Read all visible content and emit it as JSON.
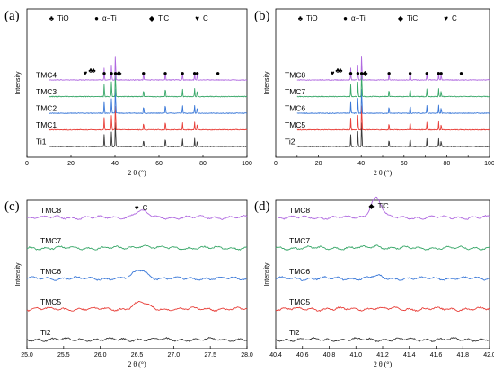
{
  "colors": {
    "black": "#3a3a3a",
    "red": "#e8403a",
    "blue": "#3a78d8",
    "green": "#3aa86a",
    "purple": "#b06ae0"
  },
  "chart_data": [
    {
      "panel": "(a)",
      "type": "line",
      "xlabel": "2 θ (°)",
      "ylabel": "Intensity",
      "xlim": [
        0,
        100
      ],
      "xticks": [
        "0",
        "20",
        "40",
        "60",
        "80",
        "100"
      ],
      "legend": [
        "TiO",
        "α−Ti",
        "TiC",
        "C"
      ],
      "legend_icons": [
        "club-icon",
        "dot-icon",
        "diamond-icon",
        "heart-icon"
      ],
      "peaks": [
        35.1,
        38.4,
        40.2,
        53.0,
        62.9,
        70.7,
        76.2,
        77.4
      ],
      "peak_heights": [
        0.45,
        0.55,
        1.0,
        0.28,
        0.35,
        0.28,
        0.3,
        0.22
      ],
      "series": [
        {
          "name": "Ti1",
          "color": "black"
        },
        {
          "name": "TMC1",
          "color": "red"
        },
        {
          "name": "TMC2",
          "color": "blue"
        },
        {
          "name": "TMC3",
          "color": "green"
        },
        {
          "name": "TMC4",
          "color": "purple"
        }
      ],
      "markers": [
        {
          "x": 26.5,
          "symbol": "heart-icon"
        },
        {
          "x": 29.0,
          "symbol": "club-icon"
        },
        {
          "x": 30.2,
          "symbol": "club-icon"
        },
        {
          "x": 35.1,
          "symbol": "dot-icon"
        },
        {
          "x": 38.4,
          "symbol": "dot-icon"
        },
        {
          "x": 40.2,
          "symbol": "dot-icon"
        },
        {
          "x": 41.8,
          "symbol": "diamond-icon"
        },
        {
          "x": 53.0,
          "symbol": "dot-icon"
        },
        {
          "x": 62.9,
          "symbol": "dot-icon"
        },
        {
          "x": 70.7,
          "symbol": "dot-icon"
        },
        {
          "x": 76.2,
          "symbol": "dot-icon"
        },
        {
          "x": 77.4,
          "symbol": "dot-icon"
        },
        {
          "x": 86.8,
          "symbol": "dot-icon"
        }
      ]
    },
    {
      "panel": "(b)",
      "type": "line",
      "xlabel": "2 θ (°)",
      "ylabel": "Intensity",
      "xlim": [
        0,
        100
      ],
      "xticks": [
        "0",
        "20",
        "40",
        "60",
        "80",
        "100"
      ],
      "legend": [
        "TiO",
        "α−Ti",
        "TiC",
        "C"
      ],
      "legend_icons": [
        "club-icon",
        "dot-icon",
        "diamond-icon",
        "heart-icon"
      ],
      "peaks": [
        35.1,
        38.4,
        40.2,
        53.0,
        62.9,
        70.7,
        76.2,
        77.4
      ],
      "peak_heights": [
        0.45,
        0.55,
        1.0,
        0.28,
        0.35,
        0.28,
        0.3,
        0.22
      ],
      "series": [
        {
          "name": "Ti2",
          "color": "black"
        },
        {
          "name": "TMC5",
          "color": "red"
        },
        {
          "name": "TMC6",
          "color": "blue"
        },
        {
          "name": "TMC7",
          "color": "green"
        },
        {
          "name": "TMC8",
          "color": "purple"
        }
      ],
      "markers": [
        {
          "x": 26.5,
          "symbol": "heart-icon"
        },
        {
          "x": 29.0,
          "symbol": "club-icon"
        },
        {
          "x": 30.2,
          "symbol": "club-icon"
        },
        {
          "x": 35.1,
          "symbol": "dot-icon"
        },
        {
          "x": 38.4,
          "symbol": "dot-icon"
        },
        {
          "x": 40.2,
          "symbol": "dot-icon"
        },
        {
          "x": 41.8,
          "symbol": "diamond-icon"
        },
        {
          "x": 53.0,
          "symbol": "dot-icon"
        },
        {
          "x": 62.9,
          "symbol": "dot-icon"
        },
        {
          "x": 70.7,
          "symbol": "dot-icon"
        },
        {
          "x": 76.2,
          "symbol": "dot-icon"
        },
        {
          "x": 77.4,
          "symbol": "dot-icon"
        },
        {
          "x": 86.8,
          "symbol": "dot-icon"
        }
      ]
    },
    {
      "panel": "(c)",
      "type": "line",
      "xlabel": "2 θ (°)",
      "ylabel": "Intensity",
      "xlim": [
        25.0,
        28.0
      ],
      "xticks": [
        "25.0",
        "25.5",
        "26.0",
        "26.5",
        "27.0",
        "27.5",
        "28.0"
      ],
      "annotation": {
        "x": 26.55,
        "symbol": "heart-icon",
        "text": "C"
      },
      "peak_center": 26.55,
      "series": [
        {
          "name": "Ti2",
          "color": "black",
          "peak": 0.0
        },
        {
          "name": "TMC5",
          "color": "red",
          "peak": 0.55
        },
        {
          "name": "TMC6",
          "color": "blue",
          "peak": 0.75
        },
        {
          "name": "TMC7",
          "color": "green",
          "peak": 0.2
        },
        {
          "name": "TMC8",
          "color": "purple",
          "peak": 0.5
        }
      ]
    },
    {
      "panel": "(d)",
      "type": "line",
      "xlabel": "2 θ (°)",
      "ylabel": "Intensity",
      "xlim": [
        40.4,
        42.0
      ],
      "xticks": [
        "40.4",
        "40.6",
        "40.8",
        "41.0",
        "41.2",
        "41.4",
        "41.6",
        "41.8",
        "42.0"
      ],
      "annotation": {
        "x": 41.15,
        "symbol": "diamond-icon",
        "text": "TiC"
      },
      "peak_center": 41.15,
      "series": [
        {
          "name": "Ti2",
          "color": "black",
          "peak": 0.0
        },
        {
          "name": "TMC5",
          "color": "red",
          "peak": 0.05
        },
        {
          "name": "TMC6",
          "color": "blue",
          "peak": 0.12
        },
        {
          "name": "TMC7",
          "color": "green",
          "peak": 0.1
        },
        {
          "name": "TMC8",
          "color": "purple",
          "peak": 1.0
        }
      ]
    }
  ]
}
